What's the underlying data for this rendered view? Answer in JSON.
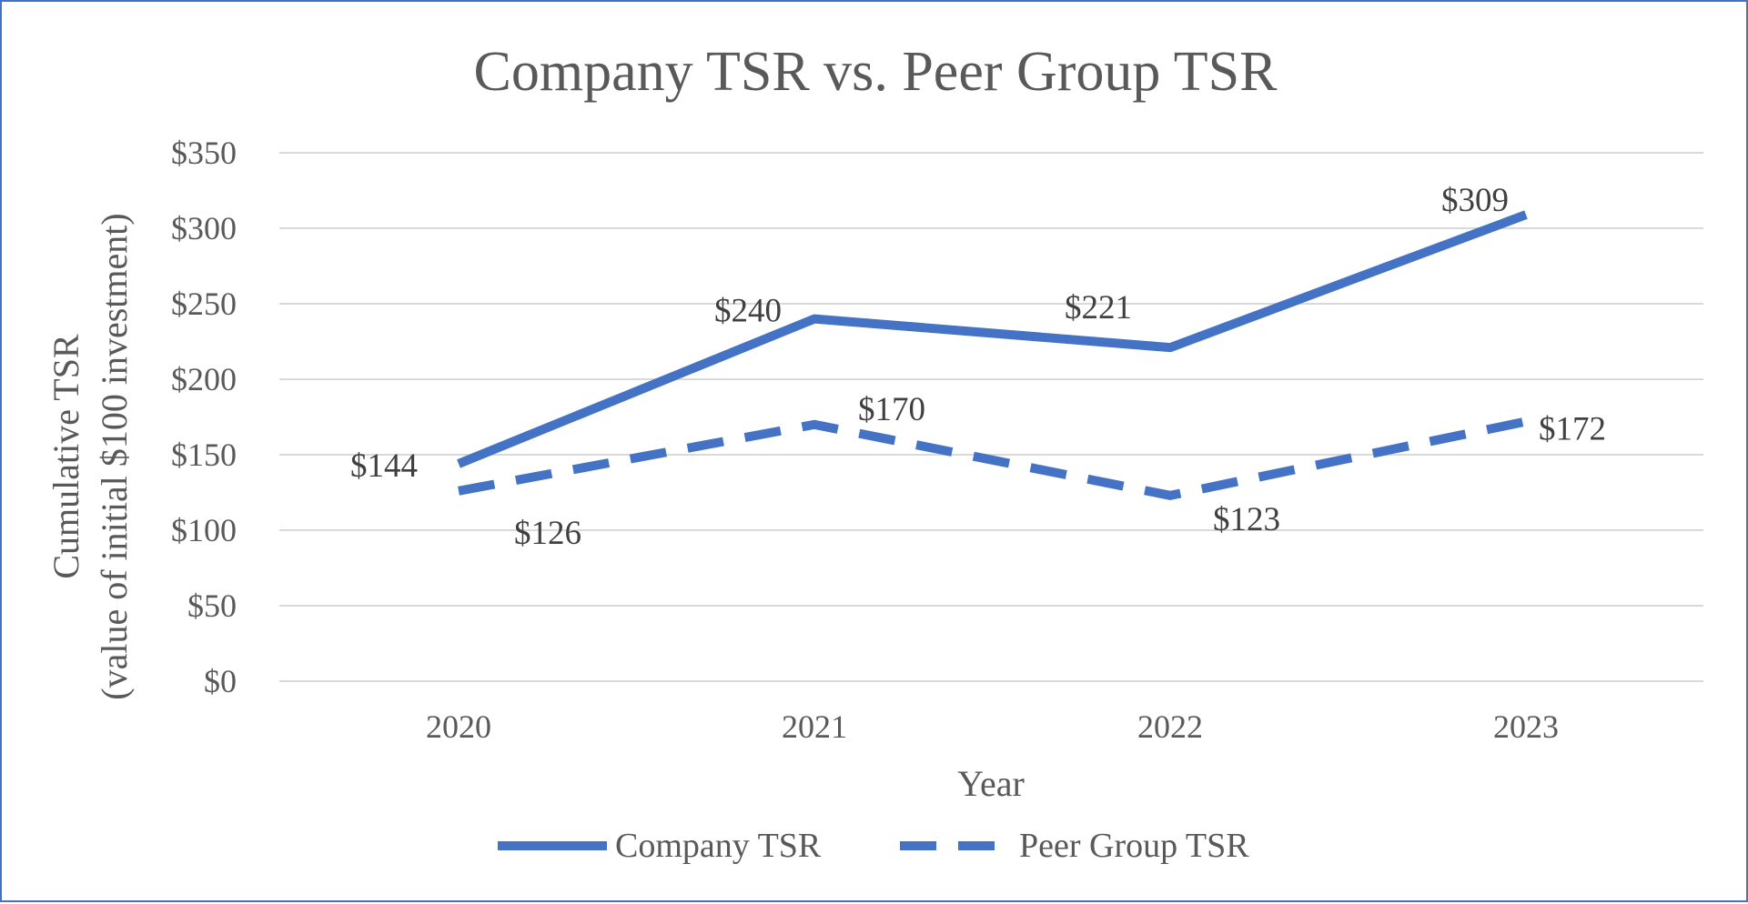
{
  "chart_data": {
    "type": "line",
    "title": "Company TSR vs. Peer Group TSR",
    "xlabel": "Year",
    "ylabel": [
      "Cumulative TSR",
      "(value of initial $100 investment)"
    ],
    "categories": [
      "2020",
      "2021",
      "2022",
      "2023"
    ],
    "ylim": [
      0,
      350
    ],
    "yticks": [
      0,
      50,
      100,
      150,
      200,
      250,
      300,
      350
    ],
    "ytick_labels": [
      "$0",
      "$50",
      "$100",
      "$150",
      "$200",
      "$250",
      "$300",
      "$350"
    ],
    "grid": true,
    "legend_position": "bottom",
    "series": [
      {
        "name": "Company TSR",
        "style": "solid",
        "color": "#4472c4",
        "values": [
          144,
          240,
          221,
          309
        ],
        "labels": [
          "$144",
          "$240",
          "$221",
          "$309"
        ]
      },
      {
        "name": "Peer Group TSR",
        "style": "dashed",
        "color": "#4472c4",
        "values": [
          126,
          170,
          123,
          172
        ],
        "labels": [
          "$126",
          "$170",
          "$123",
          "$172"
        ]
      }
    ]
  }
}
